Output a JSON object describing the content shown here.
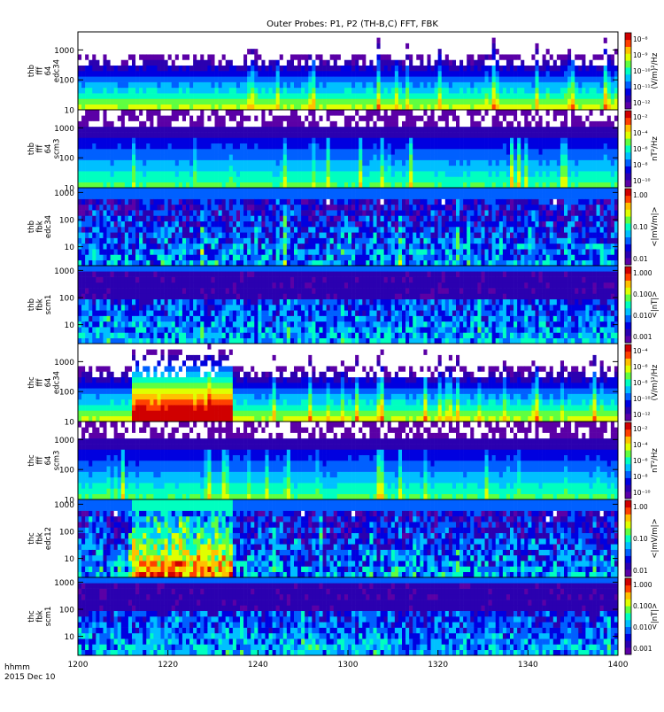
{
  "figure": {
    "title": "Outer Probes: P1, P2 (TH-B,C) FFT, FBK",
    "time_label_1": "hhmm",
    "time_label_2": "2015 Dec 10"
  },
  "colors": {
    "background": "#ffffff",
    "frame": "#000000",
    "colormap": [
      "#ffffff",
      "#5b00a6",
      "#2b00b0",
      "#0000e0",
      "#0060ff",
      "#00c0ff",
      "#00ffc0",
      "#60ff40",
      "#e0ff00",
      "#ffc000",
      "#ff4000",
      "#d00000"
    ]
  },
  "chart_data": {
    "type": "heatmap",
    "title": "Outer Probes: P1, P2 (TH-B,C) FFT, FBK",
    "x": {
      "label": "hhmm",
      "range": [
        "1200",
        "1400"
      ],
      "ticks": [
        "1200",
        "1220",
        "1240",
        "1300",
        "1320",
        "1340",
        "1400"
      ]
    },
    "panels": [
      {
        "id": "thb-fff-edc34",
        "ylabel": [
          "thb",
          "fff",
          "64",
          "edc34"
        ],
        "y_scale": "log",
        "y_range": [
          10,
          4000
        ],
        "y_ticks": [
          "10",
          "100",
          "1000"
        ],
        "colorbar_label": "(V/m)²/Hz",
        "colorbar_ticks": [
          "10⁻⁸",
          "10⁻⁹",
          "10⁻¹⁰",
          "10⁻¹¹",
          "10⁻¹²"
        ],
        "pattern": "fft_e",
        "seed": 11,
        "burst": null
      },
      {
        "id": "thb-fff-scm3",
        "ylabel": [
          "thb",
          "fff",
          "64",
          "scm3"
        ],
        "y_scale": "log",
        "y_range": [
          10,
          4000
        ],
        "y_ticks": [
          "10",
          "100",
          "1000"
        ],
        "colorbar_label": "nT²/Hz",
        "colorbar_ticks": [
          "10⁻²",
          "10⁻⁴",
          "10⁻⁶",
          "10⁻⁸",
          "10⁻¹⁰"
        ],
        "pattern": "fft_b",
        "seed": 23,
        "burst": null
      },
      {
        "id": "thb-fbk-edc34",
        "ylabel": [
          "thb",
          "fbk",
          "edc34"
        ],
        "y_scale": "log",
        "y_range": [
          2,
          1500
        ],
        "y_ticks": [
          "10",
          "100",
          "1000"
        ],
        "colorbar_label": "<|mV/m|>",
        "colorbar_ticks": [
          "1.00",
          "0.10",
          "0.01"
        ],
        "pattern": "fbk_e",
        "seed": 37,
        "burst": null
      },
      {
        "id": "thb-fbk-scm1",
        "ylabel": [
          "thb",
          "fbk",
          "scm1"
        ],
        "y_scale": "log",
        "y_range": [
          2,
          1500
        ],
        "y_ticks": [
          "10",
          "100",
          "1000"
        ],
        "colorbar_label": "<|nT|>",
        "colorbar_ticks": [
          "1.000",
          "0.100",
          "0.010",
          "0.001"
        ],
        "pattern": "fbk_b",
        "seed": 41,
        "burst": null
      },
      {
        "id": "thc-fff-edc34",
        "ylabel": [
          "thc",
          "fff",
          "64",
          "edc34"
        ],
        "y_scale": "log",
        "y_range": [
          10,
          4000
        ],
        "y_ticks": [
          "10",
          "100",
          "1000"
        ],
        "colorbar_label": "(V/m)²/Hz",
        "colorbar_ticks": [
          "10⁻⁴",
          "10⁻⁶",
          "10⁻⁸",
          "10⁻¹⁰",
          "10⁻¹²"
        ],
        "pattern": "fft_e",
        "seed": 53,
        "burst": [
          1212,
          1234
        ]
      },
      {
        "id": "thc-fff-scm3",
        "ylabel": [
          "thc",
          "fff",
          "64",
          "scm3"
        ],
        "y_scale": "log",
        "y_range": [
          10,
          4000
        ],
        "y_ticks": [
          "10",
          "100",
          "1000"
        ],
        "colorbar_label": "nT²/Hz",
        "colorbar_ticks": [
          "10⁻²",
          "10⁻⁴",
          "10⁻⁶",
          "10⁻⁸",
          "10⁻¹⁰"
        ],
        "pattern": "fft_b",
        "seed": 67,
        "burst": null
      },
      {
        "id": "thc-fbk-edc12",
        "ylabel": [
          "thc",
          "fbk",
          "edc12"
        ],
        "y_scale": "log",
        "y_range": [
          2,
          1500
        ],
        "y_ticks": [
          "10",
          "100",
          "1000"
        ],
        "colorbar_label": "<|mV/m|>",
        "colorbar_ticks": [
          "1.00",
          "0.10",
          "0.01"
        ],
        "pattern": "fbk_e",
        "seed": 71,
        "burst": [
          1212,
          1234
        ]
      },
      {
        "id": "thc-fbk-scm1",
        "ylabel": [
          "thc",
          "fbk",
          "scm1"
        ],
        "y_scale": "log",
        "y_range": [
          2,
          1500
        ],
        "y_ticks": [
          "10",
          "100",
          "1000"
        ],
        "colorbar_label": "<|nT|>",
        "colorbar_ticks": [
          "1.000",
          "0.100",
          "0.010",
          "0.001"
        ],
        "pattern": "fbk_b",
        "seed": 83,
        "burst": null
      }
    ]
  }
}
